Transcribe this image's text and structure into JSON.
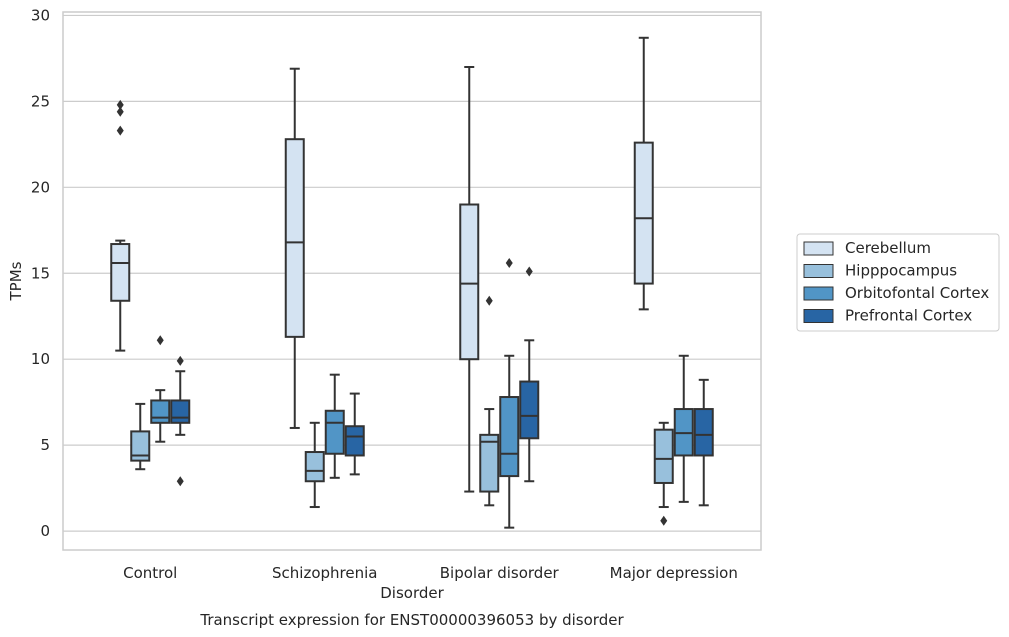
{
  "chart_data": {
    "type": "box",
    "title": "",
    "caption": "Transcript expression for ENST00000396053 by disorder",
    "xlabel": "Disorder",
    "ylabel": "TPMs",
    "ylim": [
      -1.1,
      30.2
    ],
    "yticks": [
      0,
      5,
      10,
      15,
      20,
      25,
      30
    ],
    "grid": "horizontal",
    "legend_position": "right",
    "categories": [
      "Control",
      "Schizophrenia",
      "Bipolar disorder",
      "Major depression"
    ],
    "series": [
      {
        "name": "Cerebellum",
        "color": "#d4e3f2",
        "boxes": [
          {
            "whisker_low": 10.5,
            "q1": 13.4,
            "median": 15.6,
            "q3": 16.7,
            "whisker_high": 16.9,
            "outliers": [
              23.3,
              24.4,
              24.8
            ]
          },
          {
            "whisker_low": 6.0,
            "q1": 11.3,
            "median": 16.8,
            "q3": 22.8,
            "whisker_high": 26.9,
            "outliers": []
          },
          {
            "whisker_low": 2.3,
            "q1": 10.0,
            "median": 14.4,
            "q3": 19.0,
            "whisker_high": 27.0,
            "outliers": []
          },
          {
            "whisker_low": 12.9,
            "q1": 14.4,
            "median": 18.2,
            "q3": 22.6,
            "whisker_high": 28.7,
            "outliers": []
          }
        ]
      },
      {
        "name": "Hipppocampus",
        "color": "#98c0dc",
        "boxes": [
          {
            "whisker_low": 3.6,
            "q1": 4.1,
            "median": 4.4,
            "q3": 5.8,
            "whisker_high": 7.4,
            "outliers": []
          },
          {
            "whisker_low": 1.4,
            "q1": 2.9,
            "median": 3.5,
            "q3": 4.6,
            "whisker_high": 6.3,
            "outliers": []
          },
          {
            "whisker_low": 1.5,
            "q1": 2.3,
            "median": 5.2,
            "q3": 5.6,
            "whisker_high": 7.1,
            "outliers": [
              13.4
            ]
          },
          {
            "whisker_low": 1.4,
            "q1": 2.8,
            "median": 4.2,
            "q3": 5.9,
            "whisker_high": 6.3,
            "outliers": [
              0.6
            ]
          }
        ]
      },
      {
        "name": "Orbitofontal Cortex",
        "color": "#5195c6",
        "boxes": [
          {
            "whisker_low": 5.2,
            "q1": 6.3,
            "median": 6.6,
            "q3": 7.6,
            "whisker_high": 8.2,
            "outliers": [
              11.1
            ]
          },
          {
            "whisker_low": 3.1,
            "q1": 4.5,
            "median": 6.3,
            "q3": 7.0,
            "whisker_high": 9.1,
            "outliers": []
          },
          {
            "whisker_low": 0.2,
            "q1": 3.2,
            "median": 4.5,
            "q3": 7.8,
            "whisker_high": 10.2,
            "outliers": [
              15.6
            ]
          },
          {
            "whisker_low": 1.7,
            "q1": 4.4,
            "median": 5.7,
            "q3": 7.1,
            "whisker_high": 10.2,
            "outliers": []
          }
        ]
      },
      {
        "name": "Prefrontal Cortex",
        "color": "#2865a4",
        "boxes": [
          {
            "whisker_low": 5.6,
            "q1": 6.3,
            "median": 6.6,
            "q3": 7.6,
            "whisker_high": 9.3,
            "outliers": [
              9.9,
              2.9
            ]
          },
          {
            "whisker_low": 3.3,
            "q1": 4.4,
            "median": 5.5,
            "q3": 6.1,
            "whisker_high": 8.0,
            "outliers": []
          },
          {
            "whisker_low": 2.9,
            "q1": 5.4,
            "median": 6.7,
            "q3": 8.7,
            "whisker_high": 11.1,
            "outliers": [
              15.1
            ]
          },
          {
            "whisker_low": 1.5,
            "q1": 4.4,
            "median": 5.6,
            "q3": 7.1,
            "whisker_high": 8.8,
            "outliers": []
          }
        ]
      }
    ]
  }
}
